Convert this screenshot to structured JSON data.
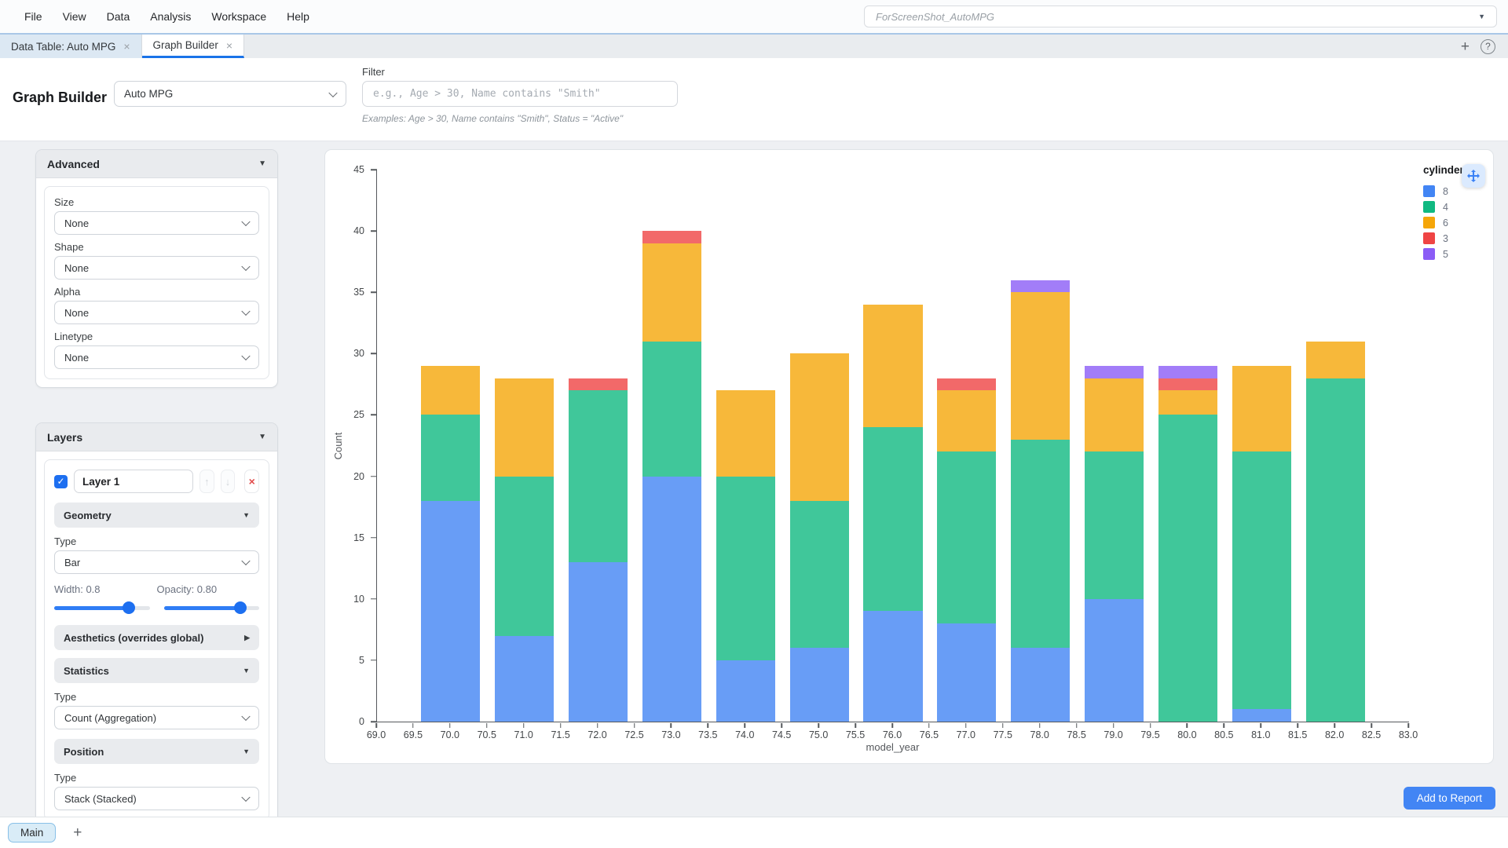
{
  "colors": {
    "accent": "#3b82f6",
    "tab_indicator": "#1a73e8"
  },
  "icons": {
    "dropdown_caret": "▼",
    "collapse_open": "▼",
    "collapse_closed": "▶",
    "close": "×",
    "help": "?",
    "add": "+",
    "move_up": "↑",
    "move_down": "↓",
    "remove": "×",
    "checkmark": "✓"
  },
  "menu_bar": {
    "items": [
      "File",
      "View",
      "Data",
      "Analysis",
      "Workspace",
      "Help"
    ],
    "workspace_name": "ForScreenShot_AutoMPG"
  },
  "tab_bar": {
    "tabs": [
      {
        "label": "Data Table: Auto MPG"
      },
      {
        "label": "Graph Builder"
      }
    ]
  },
  "header": {
    "title": "Graph Builder",
    "dataset_value": "Auto MPG",
    "filter_label": "Filter",
    "filter_placeholder": "e.g., Age > 30, Name contains \"Smith\"",
    "filter_examples": "Examples: Age > 30, Name contains \"Smith\", Status = \"Active\""
  },
  "sidebar": {
    "advanced": {
      "title": "Advanced",
      "size_label": "Size",
      "size_value": "None",
      "shape_label": "Shape",
      "shape_value": "None",
      "alpha_label": "Alpha",
      "alpha_value": "None",
      "linetype_label": "Linetype",
      "linetype_value": "None"
    },
    "layers": {
      "title": "Layers",
      "layer_name": "Layer 1",
      "layer_checked": true,
      "geometry": {
        "title": "Geometry",
        "type_label": "Type",
        "type_value": "Bar",
        "width_label": "Width: 0.8",
        "width_slider": {
          "min": 0.1,
          "max": 1.0,
          "value": 0.8
        },
        "opacity_label": "Opacity: 0.80",
        "opacity_slider": {
          "min": 0,
          "max": 1.0,
          "value": 0.8
        }
      },
      "aesthetics_title": "Aesthetics (overrides global)",
      "statistics": {
        "title": "Statistics",
        "type_label": "Type",
        "type_value": "Count (Aggregation)"
      },
      "position": {
        "title": "Position",
        "type_label": "Type",
        "type_value": "Stack (Stacked)"
      }
    }
  },
  "chart_data": {
    "type": "bar",
    "stacked": true,
    "title": "",
    "xlabel": "model_year",
    "ylabel": "Count",
    "legend_title": "cylinders",
    "legend_position": "right",
    "grid": false,
    "xlim": [
      69.0,
      83.0
    ],
    "ylim": [
      0,
      45
    ],
    "x_tick_step": 0.5,
    "y_tick_step": 5,
    "bar_width": 0.8,
    "bar_opacity": 0.8,
    "x": [
      70,
      71,
      72,
      73,
      74,
      75,
      76,
      77,
      78,
      79,
      80,
      81,
      82
    ],
    "series": [
      {
        "name": "8",
        "color": "#4285f4",
        "values": [
          18,
          7,
          13,
          20,
          5,
          6,
          9,
          8,
          6,
          10,
          0,
          1,
          0
        ]
      },
      {
        "name": "4",
        "color": "#10b981",
        "values": [
          7,
          13,
          14,
          11,
          15,
          12,
          15,
          14,
          17,
          12,
          25,
          21,
          28
        ]
      },
      {
        "name": "6",
        "color": "#f5a609",
        "values": [
          4,
          8,
          0,
          8,
          7,
          12,
          10,
          5,
          12,
          6,
          2,
          7,
          3
        ]
      },
      {
        "name": "3",
        "color": "#ef4444",
        "values": [
          0,
          0,
          1,
          1,
          0,
          0,
          0,
          1,
          0,
          0,
          1,
          0,
          0
        ]
      },
      {
        "name": "5",
        "color": "#8b5cf6",
        "values": [
          0,
          0,
          0,
          0,
          0,
          0,
          0,
          0,
          1,
          1,
          1,
          0,
          0
        ]
      }
    ]
  },
  "report": {
    "add_button": "Add to Report"
  },
  "bottom_bar": {
    "main_tab": "Main"
  }
}
